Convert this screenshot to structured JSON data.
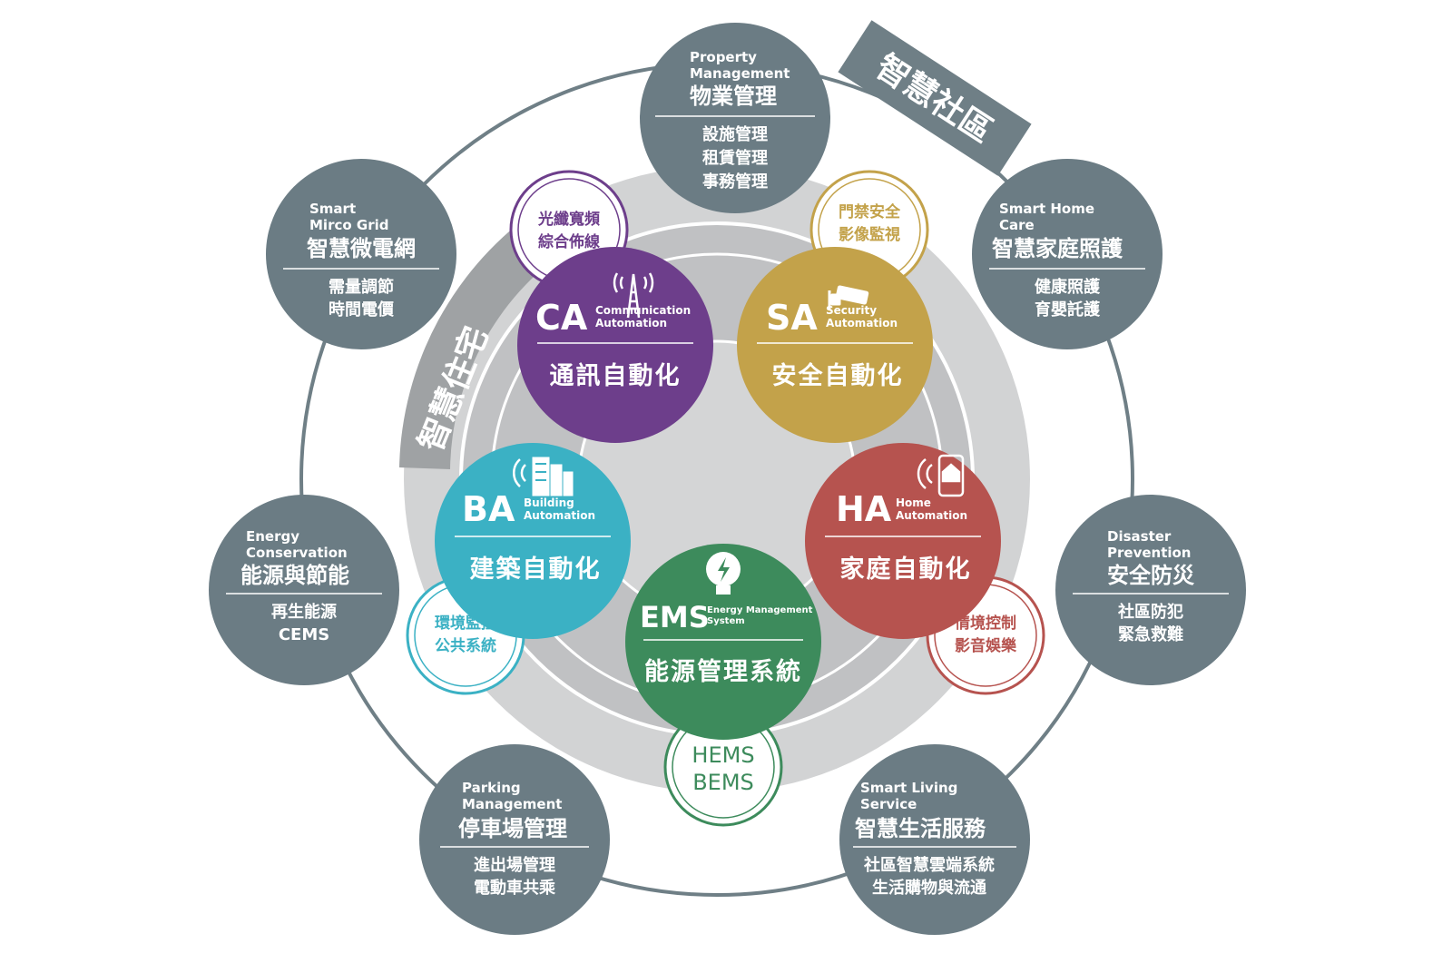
{
  "colors": {
    "gray_node": "#6b7c84",
    "outer_ring": "#6f7f86",
    "band": "#9fa2a4",
    "core_light": "#d2d3d4",
    "core_dark": "#c0c1c3",
    "CA": "#6d3e8b",
    "SA": "#c3a24a",
    "BA": "#3bb1c4",
    "HA": "#b6534f",
    "EMS": "#3d8b5c"
  },
  "community_label": "智慧社區",
  "residence_label": "智慧住宅",
  "outer_nodes": [
    {
      "id": "property",
      "en_lines": [
        "Property",
        "Management"
      ],
      "zh": "物業管理",
      "items": [
        "設施管理",
        "租賃管理",
        "事務管理"
      ]
    },
    {
      "id": "homecare",
      "en_lines": [
        "Smart Home",
        "Care"
      ],
      "zh": "智慧家庭照護",
      "items": [
        "健康照護",
        "育嬰託護"
      ]
    },
    {
      "id": "disaster",
      "en_lines": [
        "Disaster",
        "Prevention"
      ],
      "zh": "安全防災",
      "items": [
        "社區防犯",
        "緊急救難"
      ]
    },
    {
      "id": "living",
      "en_lines": [
        "Smart Living",
        "Service"
      ],
      "zh": "智慧生活服務",
      "items": [
        "社區智慧雲端系統",
        "生活購物與流通"
      ]
    },
    {
      "id": "parking",
      "en_lines": [
        "Parking",
        "Management"
      ],
      "zh": "停車場管理",
      "items": [
        "進出場管理",
        "電動車共乘"
      ]
    },
    {
      "id": "energy",
      "en_lines": [
        "Energy",
        "Conservation"
      ],
      "zh": "能源與節能",
      "items": [
        "再生能源",
        "CEMS"
      ]
    },
    {
      "id": "microgrid",
      "en_lines": [
        "Smart",
        "Mirco Grid"
      ],
      "zh": "智慧微電網",
      "items": [
        "需量調節",
        "時間電價"
      ]
    }
  ],
  "systems": [
    {
      "id": "CA",
      "abbr": "CA",
      "en_lines": [
        "Communication",
        "Automation"
      ],
      "zh": "通訊自動化",
      "icon": "antenna-tower-icon",
      "sub": [
        "光纖寬頻",
        "綜合佈線"
      ]
    },
    {
      "id": "SA",
      "abbr": "SA",
      "en_lines": [
        "Security",
        "Automation"
      ],
      "zh": "安全自動化",
      "icon": "security-camera-icon",
      "sub": [
        "門禁安全",
        "影像監視"
      ]
    },
    {
      "id": "BA",
      "abbr": "BA",
      "en_lines": [
        "Building",
        "Automation"
      ],
      "zh": "建築自動化",
      "icon": "building-signal-icon",
      "sub": [
        "環境監控",
        "公共系統"
      ]
    },
    {
      "id": "HA",
      "abbr": "HA",
      "en_lines": [
        "Home",
        "Automation"
      ],
      "zh": "家庭自動化",
      "icon": "phone-home-icon",
      "sub": [
        "情境控制",
        "影音娛樂"
      ]
    },
    {
      "id": "EMS",
      "abbr": "EMS",
      "en_lines": [
        "Energy Management",
        "System"
      ],
      "zh": "能源管理系統",
      "icon": "lightbulb-bolt-icon",
      "sub": [
        "HEMS",
        "BEMS"
      ]
    }
  ]
}
